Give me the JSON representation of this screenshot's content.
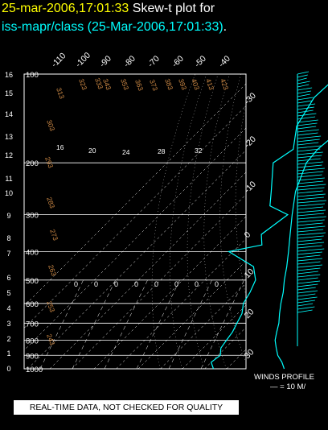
{
  "header": {
    "timestamp": "25-mar-2006,17:01:33",
    "title_text": "Skew-t plot for",
    "station_line": "iss-mapr/class (25-Mar-2006,17:01:33)",
    "station_period": "."
  },
  "colors": {
    "profile": "#00ffff",
    "title_yellow": "#ffff00",
    "dry_adiabat_labels": "#cc8844",
    "grid": "#ffffff",
    "background": "#000000"
  },
  "chart_data": {
    "type": "line",
    "pressure_axis": {
      "min_hPa": 100,
      "max_hPa": 1000,
      "scale": "log",
      "ticks": [
        {
          "label": "100",
          "p": 100
        },
        {
          "label": "200",
          "p": 200
        },
        {
          "label": "300",
          "p": 300
        },
        {
          "label": "400",
          "p": 400
        },
        {
          "label": "500",
          "p": 500
        },
        {
          "label": "600",
          "p": 600
        },
        {
          "label": "700",
          "p": 700
        },
        {
          "label": "800",
          "p": 800
        },
        {
          "label": "900",
          "p": 900
        },
        {
          "label": "1000",
          "p": 1000
        }
      ]
    },
    "height_axis": {
      "unit": "km",
      "ticks": [
        "0",
        "1",
        "2",
        "3",
        "4",
        "5",
        "6",
        "7",
        "8",
        "9",
        "10",
        "11",
        "12",
        "13",
        "14",
        "15",
        "16"
      ]
    },
    "skewed_temp_labels_top": [
      "-110",
      "-100",
      "-90",
      "-80",
      "-70",
      "-60",
      "-50",
      "-40"
    ],
    "skewed_temp_labels_right": [
      "-30",
      "-20",
      "-10",
      "0",
      "10",
      "20",
      "30"
    ],
    "temp_axis_unit": "°C",
    "dry_adiabat_labels": [
      "303",
      "313",
      "323",
      "333",
      "343",
      "353",
      "363",
      "373",
      "383",
      "393",
      "403",
      "413",
      "423",
      "293",
      "283",
      "273",
      "263",
      "253",
      "243"
    ],
    "mixing_ratio_labels": [
      "16",
      "20",
      "24",
      "28",
      "32"
    ],
    "moist_adiabat_markers": [
      "0",
      "0",
      "0",
      "0",
      "0",
      "0",
      "0",
      "0"
    ],
    "series": [
      {
        "role": "temperature",
        "points": [
          {
            "p": 1000,
            "t": 26
          },
          {
            "p": 950,
            "t": 22
          },
          {
            "p": 900,
            "t": 17
          },
          {
            "p": 850,
            "t": 13
          },
          {
            "p": 800,
            "t": 9
          },
          {
            "p": 750,
            "t": 6
          },
          {
            "p": 700,
            "t": 3
          },
          {
            "p": 650,
            "t": -1
          },
          {
            "p": 600,
            "t": -5
          },
          {
            "p": 550,
            "t": -9
          },
          {
            "p": 500,
            "t": -14
          },
          {
            "p": 450,
            "t": -19
          },
          {
            "p": 400,
            "t": -25
          },
          {
            "p": 350,
            "t": -32
          },
          {
            "p": 300,
            "t": -40
          },
          {
            "p": 250,
            "t": -49
          },
          {
            "p": 200,
            "t": -57
          },
          {
            "p": 180,
            "t": -58
          },
          {
            "p": 150,
            "t": -56
          },
          {
            "p": 130,
            "t": -57
          },
          {
            "p": 110,
            "t": -59
          },
          {
            "p": 100,
            "t": -60
          }
        ]
      },
      {
        "role": "dewpoint",
        "points": [
          {
            "p": 1000,
            "t": -6
          },
          {
            "p": 950,
            "t": -10
          },
          {
            "p": 900,
            "t": -9
          },
          {
            "p": 850,
            "t": -12
          },
          {
            "p": 800,
            "t": -13
          },
          {
            "p": 750,
            "t": -14
          },
          {
            "p": 700,
            "t": -16
          },
          {
            "p": 650,
            "t": -18
          },
          {
            "p": 600,
            "t": -22
          },
          {
            "p": 550,
            "t": -24
          },
          {
            "p": 500,
            "t": -27
          },
          {
            "p": 450,
            "t": -34
          },
          {
            "p": 400,
            "t": -52
          },
          {
            "p": 380,
            "t": -40
          },
          {
            "p": 350,
            "t": -45
          },
          {
            "p": 300,
            "t": -42
          },
          {
            "p": 280,
            "t": -54
          },
          {
            "p": 250,
            "t": -60
          },
          {
            "p": 200,
            "t": -72
          },
          {
            "p": 180,
            "t": -69
          },
          {
            "p": 150,
            "t": -78
          },
          {
            "p": 120,
            "t": -83
          },
          {
            "p": 100,
            "t": -82
          }
        ]
      }
    ],
    "wind_profile": {
      "label": "WINDS PROFILE",
      "scale_text": "— = 10 M/"
    }
  },
  "footer": {
    "disclaimer": "REAL-TIME DATA, NOT CHECKED FOR QUALITY"
  }
}
